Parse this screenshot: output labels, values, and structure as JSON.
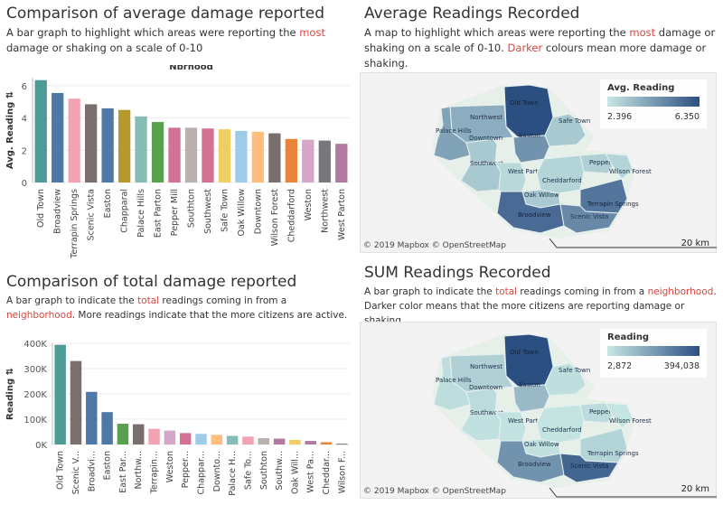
{
  "colors": {
    "accent": "#d9453f",
    "map_low": "#c7e7e4",
    "map_high": "#2c4f82",
    "land_line": "#5a7f8c",
    "route": "#bfe0ea"
  },
  "panels": {
    "avg_bar": {
      "title": "Comparison of average damage reported",
      "desc_pre": "A bar graph to highlight which areas were reporting the ",
      "desc_hl": "most",
      "desc_post": " damage or shaking on a scale of 0-10"
    },
    "avg_map": {
      "title": "Average Readings Recorded",
      "desc_pre": "A map to highlight which areas were reporting the ",
      "desc_hl": "most",
      "desc_mid": " damage or shaking on a scale of 0-10. ",
      "desc_hl2": "Darker",
      "desc_post": " colours mean more damage or shaking.",
      "legend_title": "Avg. Reading",
      "legend_min": "2.396",
      "legend_max": "6.350",
      "attribution": "© 2019 Mapbox  © OpenStreetMap",
      "scale": "20 km"
    },
    "sum_bar": {
      "title": "Comparison of total damage reported",
      "desc_pre": "A bar graph to indicate the ",
      "desc_hl": "total",
      "desc_mid": " readings coming in from a ",
      "desc_hl2": "neighborhood",
      "desc_post": ". More readings indicate that the more citizens are active."
    },
    "sum_map": {
      "title": "SUM Readings Recorded",
      "desc_pre": "A bar graph to indicate the ",
      "desc_hl": "total",
      "desc_mid": " readings coming in from a ",
      "desc_hl2": "neighborhood",
      "desc_post": ". Darker color means  that the more citizens are reporting damage or shaking.",
      "legend_title": "Reading",
      "legend_min": "2,872",
      "legend_max": "394,038",
      "attribution": "© 2019 Mapbox  © OpenStreetMap",
      "scale": "20 km"
    }
  },
  "map_labels": [
    "Old Town",
    "Northwest",
    "Safe Town",
    "Palace Hills",
    "Downtown",
    "Easton",
    "Southwest",
    "West Parton",
    "Pepper Mill",
    "Wilson Forest",
    "Cheddarford",
    "Oak Willow",
    "Terrapin Springs",
    "Broadview",
    "Scenic Vista"
  ],
  "chart_data": [
    {
      "type": "bar",
      "title": "Nbrhood",
      "xlabel": "",
      "ylabel": "Avg. Reading",
      "ylim": [
        0,
        6.5
      ],
      "yticks": [
        0,
        2,
        4,
        6
      ],
      "categories": [
        "Old Town",
        "Broadview",
        "Terrapin Springs",
        "Scenic Vista",
        "Easton",
        "Chapparal",
        "Palace Hills",
        "East Parton",
        "Pepper Mill",
        "Southton",
        "Southwest",
        "Safe Town",
        "Oak Willow",
        "Downtown",
        "Wilson Forest",
        "Cheddarford",
        "Weston",
        "Northwest",
        "West Parton"
      ],
      "values": [
        6.35,
        5.55,
        5.2,
        4.85,
        4.6,
        4.5,
        4.1,
        3.75,
        3.4,
        3.4,
        3.35,
        3.3,
        3.2,
        3.15,
        3.05,
        2.7,
        2.65,
        2.6,
        2.4
      ],
      "colors": [
        "#4e9a95",
        "#4e79a7",
        "#f1a3b3",
        "#79706e",
        "#4e79a7",
        "#b6992d",
        "#86bcb6",
        "#59a14f",
        "#d37295",
        "#bab0ac",
        "#d37295",
        "#f1ce63",
        "#a0cbe8",
        "#ffbe7d",
        "#79706e",
        "#e8853a",
        "#d4a6c8",
        "#76787d",
        "#b07aa1"
      ]
    },
    {
      "type": "bar",
      "title": "Nbrhood",
      "xlabel": "",
      "ylabel": "Reading",
      "ylim": [
        0,
        400000
      ],
      "yticks": [
        0,
        100000,
        200000,
        300000,
        400000
      ],
      "ytick_labels": [
        "0K",
        "100K",
        "200K",
        "300K",
        "400K"
      ],
      "categories": [
        "Old Town",
        "Scenic V...",
        "Broadvi...",
        "Easton",
        "East Par...",
        "Northw...",
        "Terrapin...",
        "Weston",
        "Pepper...",
        "Chappar...",
        "Downto...",
        "Palace H...",
        "Safe To...",
        "Southton",
        "Southw...",
        "Oak Will...",
        "West Pa...",
        "Cheddar...",
        "Wilson F..."
      ],
      "values": [
        394038,
        330000,
        208000,
        128000,
        82000,
        80000,
        62000,
        55000,
        45000,
        42000,
        38000,
        34000,
        31000,
        25000,
        23000,
        18000,
        14000,
        9000,
        2872
      ],
      "colors": [
        "#4e9a95",
        "#79706e",
        "#4e79a7",
        "#4e79a7",
        "#59a14f",
        "#79706e",
        "#f1a3b3",
        "#d4a6c8",
        "#d37295",
        "#a0cbe8",
        "#ffbe7d",
        "#86bcb6",
        "#f1a3b3",
        "#bab0ac",
        "#b07aa1",
        "#f1ce63",
        "#b07aa1",
        "#e8853a",
        "#79706e"
      ]
    }
  ]
}
